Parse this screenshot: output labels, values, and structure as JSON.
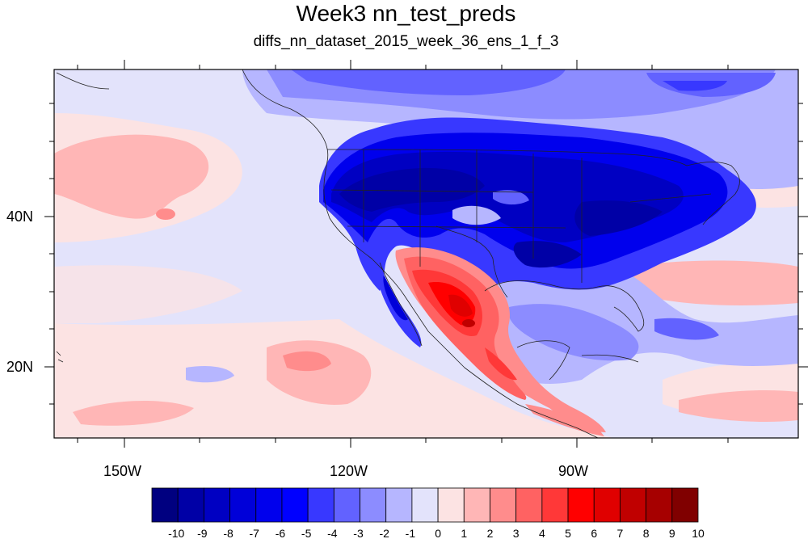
{
  "title": "Week3 nn_test_preds",
  "subtitle": "diffs_nn_dataset_2015_week_36_ens_1_f_3",
  "lon_labels": [
    "150W",
    "120W",
    "90W"
  ],
  "lat_labels": [
    "40N",
    "20N"
  ],
  "colorbar": {
    "labels": [
      "-10",
      "-9",
      "-8",
      "-7",
      "-6",
      "-5",
      "-4",
      "-3",
      "-2",
      "-1",
      "0",
      "1",
      "2",
      "3",
      "4",
      "5",
      "6",
      "7",
      "8",
      "9",
      "10"
    ],
    "colors": [
      "#000080",
      "#0000a6",
      "#0000c2",
      "#0000d9",
      "#0000ed",
      "#0000ff",
      "#3838ff",
      "#6262ff",
      "#8c8cff",
      "#b6b6ff",
      "#e3e3fb",
      "#fce3e3",
      "#ffb6b6",
      "#ff8c8c",
      "#ff6262",
      "#ff3838",
      "#ff0000",
      "#e00000",
      "#c00000",
      "#a60000",
      "#800000"
    ]
  },
  "map": {
    "projection": "cylindrical equidistant",
    "lon_range": [
      -160,
      -60
    ],
    "lat_range": [
      10,
      60
    ]
  }
}
